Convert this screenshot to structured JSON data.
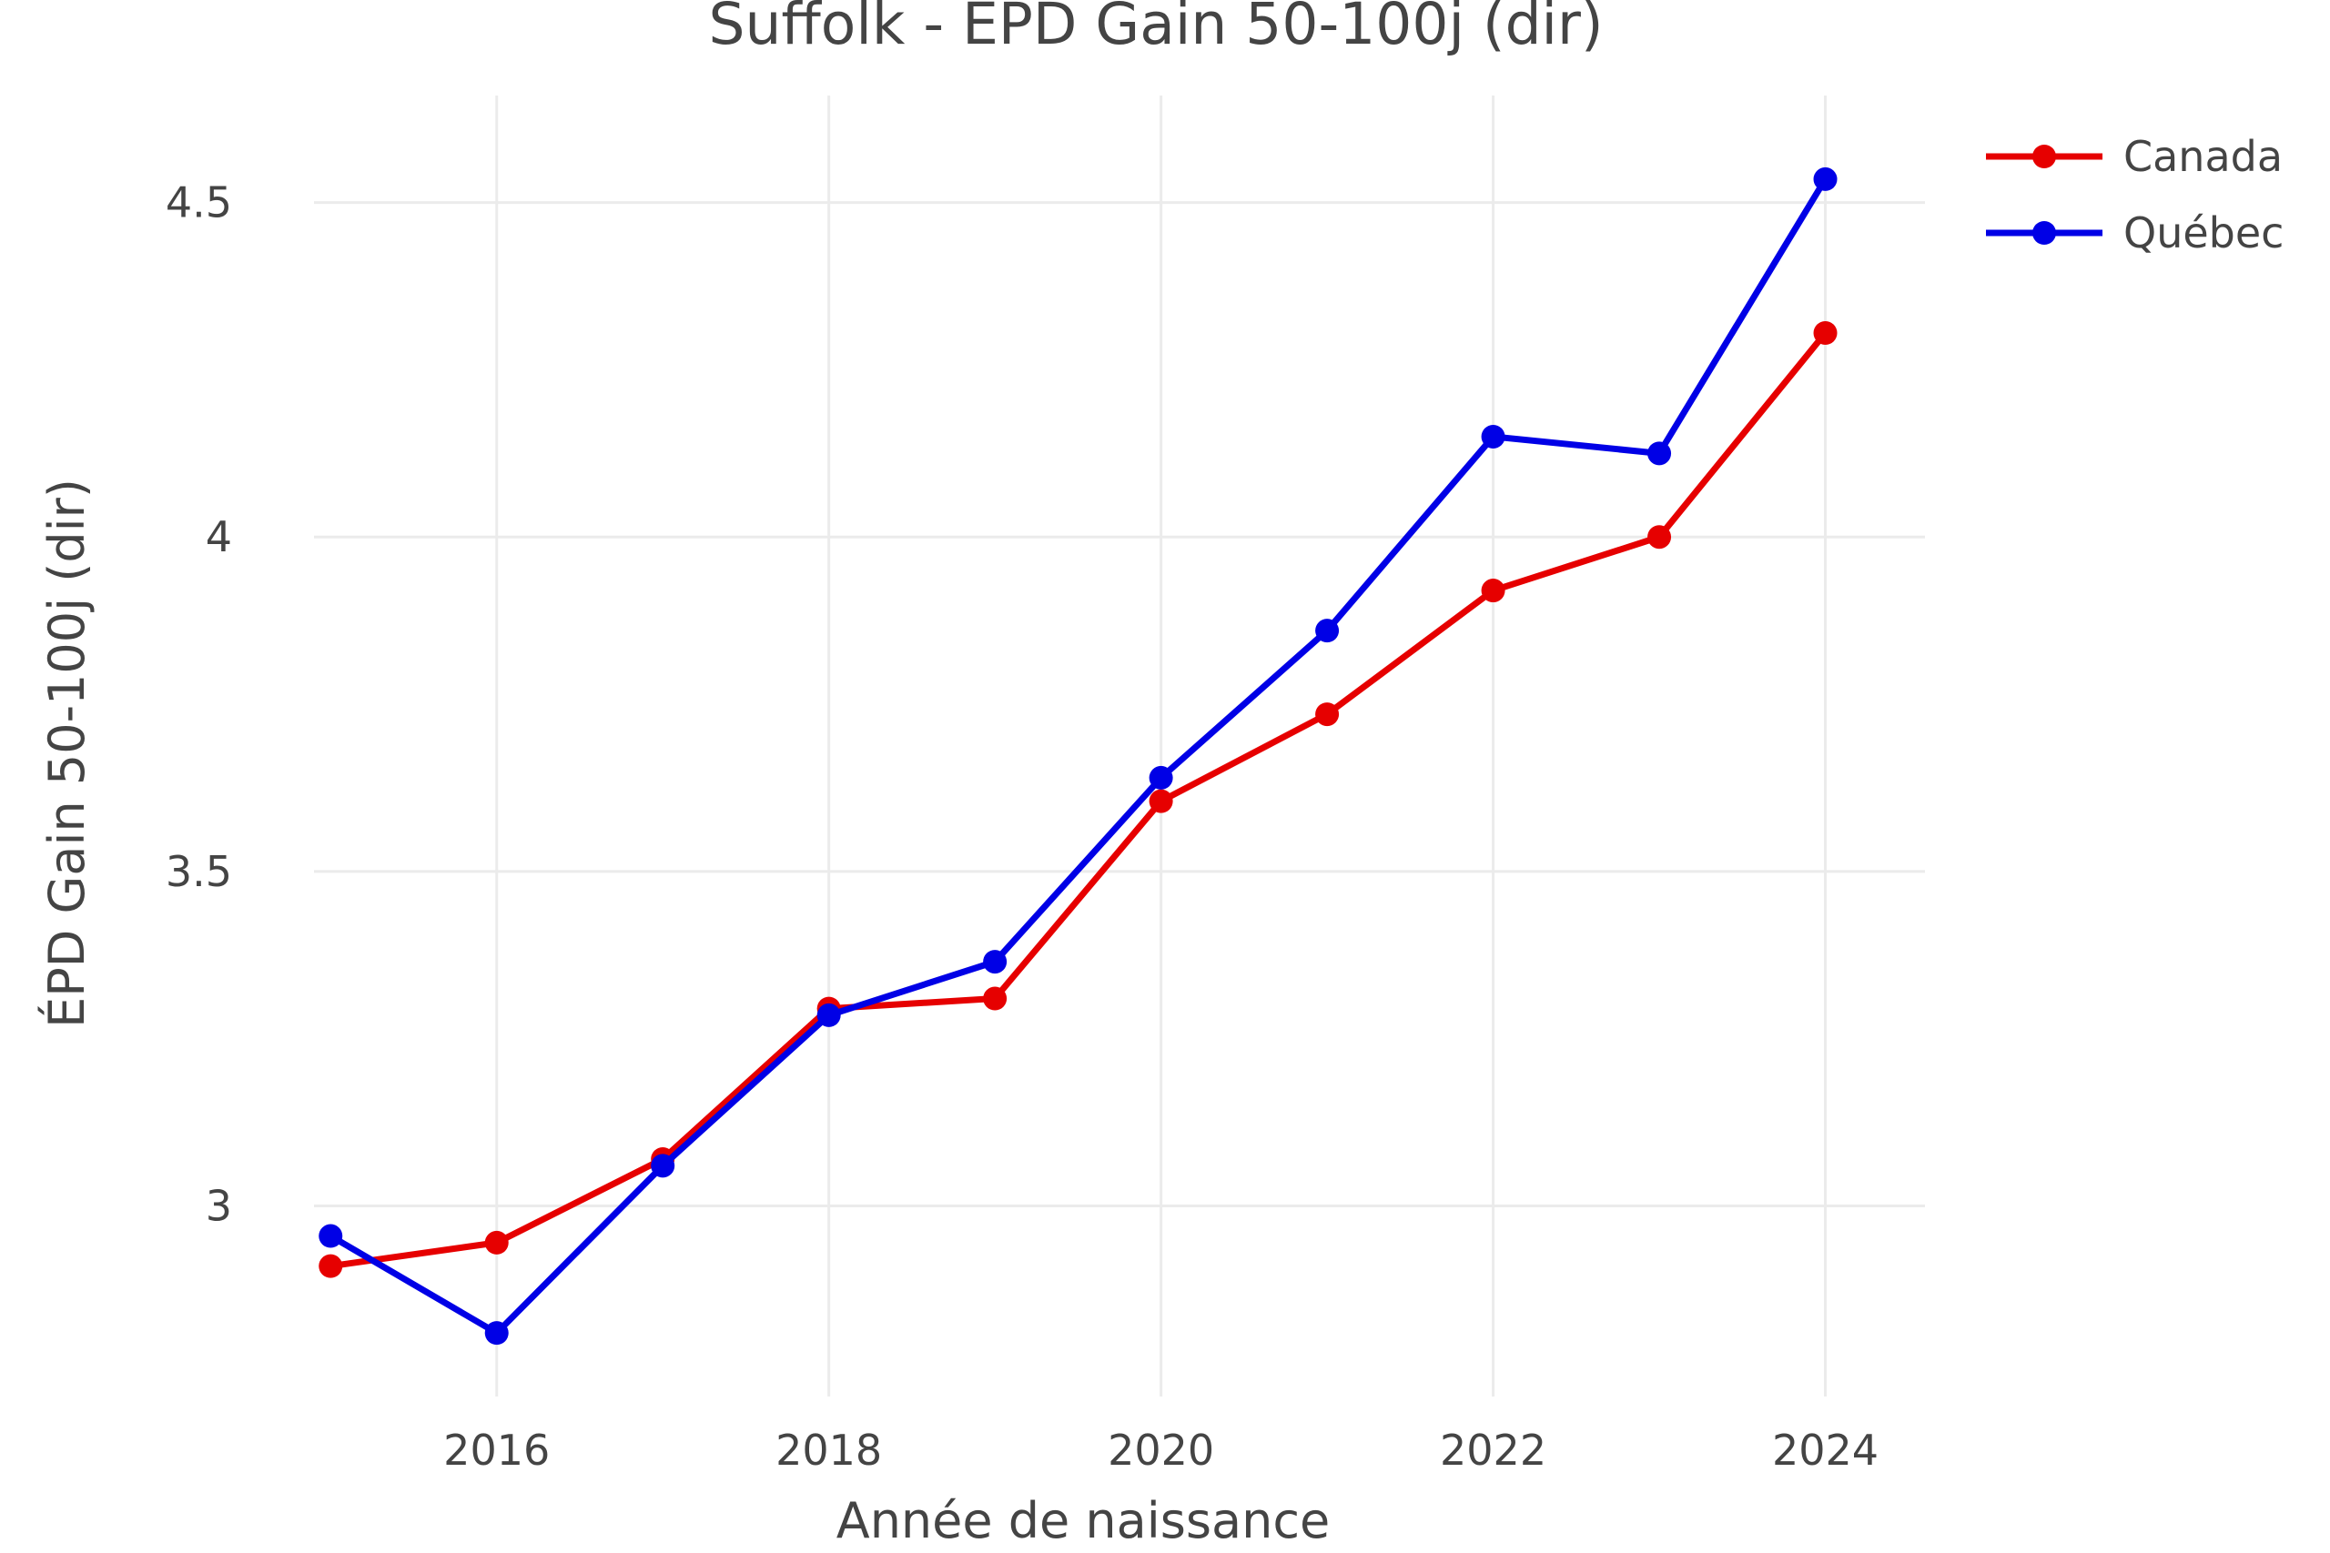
{
  "chart_data": {
    "type": "line",
    "title": "Suffolk - EPD Gain 50-100j (dir)",
    "xlabel": "Année de naissance",
    "ylabel": "ÉPD Gain 50-100j (dir)",
    "x": [
      2015,
      2016,
      2017,
      2018,
      2019,
      2020,
      2021,
      2022,
      2023,
      2024
    ],
    "xticks": [
      2016,
      2018,
      2020,
      2022,
      2024
    ],
    "xtick_labels": [
      "2016",
      "2018",
      "2020",
      "2022",
      "2024"
    ],
    "yticks": [
      3,
      3.5,
      4,
      4.5
    ],
    "ytick_labels": [
      "3",
      "3.5",
      "4",
      "4.5"
    ],
    "xlim": [
      2014.9,
      2024.6
    ],
    "ylim": [
      2.715,
      4.66
    ],
    "grid": true,
    "legend_position": "top-right",
    "series": [
      {
        "name": "Canada",
        "color": "#e60000",
        "values": [
          2.91,
          2.945,
          3.07,
          3.295,
          3.31,
          3.605,
          3.735,
          3.92,
          4.0,
          4.305
        ]
      },
      {
        "name": "Québec",
        "color": "#0000e6",
        "values": [
          2.955,
          2.81,
          3.06,
          3.285,
          3.365,
          3.64,
          3.86,
          4.15,
          4.125,
          4.535
        ]
      }
    ]
  }
}
